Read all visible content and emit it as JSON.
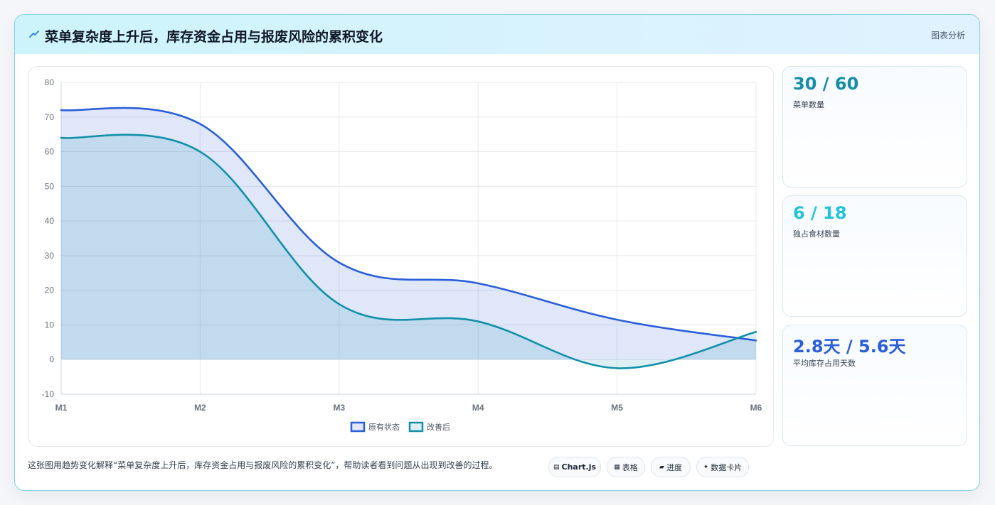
{
  "header": {
    "title": "菜单复杂度上升后，库存资金占用与报废风险的累积变化",
    "tag": "图表分析"
  },
  "colors": {
    "series_original": "#2b5fd9",
    "series_improved": "#1190a9",
    "stat_1": "#148ea6",
    "stat_2": "#22c3dc",
    "stat_3": "#2b5fd9"
  },
  "chart_data": {
    "type": "line",
    "area_fill": true,
    "x": [
      "M1",
      "M2",
      "M3",
      "M4",
      "M5",
      "M6"
    ],
    "ylim": [
      -10,
      80
    ],
    "yticks": [
      "80",
      "70",
      "60",
      "50",
      "40",
      "30",
      "20",
      "10",
      "0",
      "-10"
    ],
    "grid": true,
    "legend_position": "bottom",
    "series": [
      {
        "name": "原有状态",
        "values": [
          72,
          68,
          28,
          22,
          11.5,
          5.5
        ]
      },
      {
        "name": "改善后",
        "values": [
          64,
          60,
          16,
          11,
          -2.5,
          8
        ]
      }
    ]
  },
  "stats": [
    {
      "value": "30 / 60",
      "label": "菜单数量"
    },
    {
      "value": "6 / 18",
      "label": "独占食材数量"
    },
    {
      "value": "2.8天 / 5.6天",
      "label": "平均库存占用天数"
    }
  ],
  "footer": {
    "text": "这张图用趋势变化解释“菜单复杂度上升后，库存资金占用与报废风险的累积变化”，帮助读者看到问题从出现到改善的过程。",
    "chips": [
      {
        "icon": "▤",
        "icon_name": "chart-icon",
        "label": "Chart.js"
      },
      {
        "icon": "▦",
        "icon_name": "table-icon",
        "label": "表格"
      },
      {
        "icon": "▰",
        "icon_name": "progress-icon",
        "label": "进度"
      },
      {
        "icon": "✦",
        "icon_name": "sparkle-icon",
        "label": "数据卡片"
      }
    ]
  }
}
